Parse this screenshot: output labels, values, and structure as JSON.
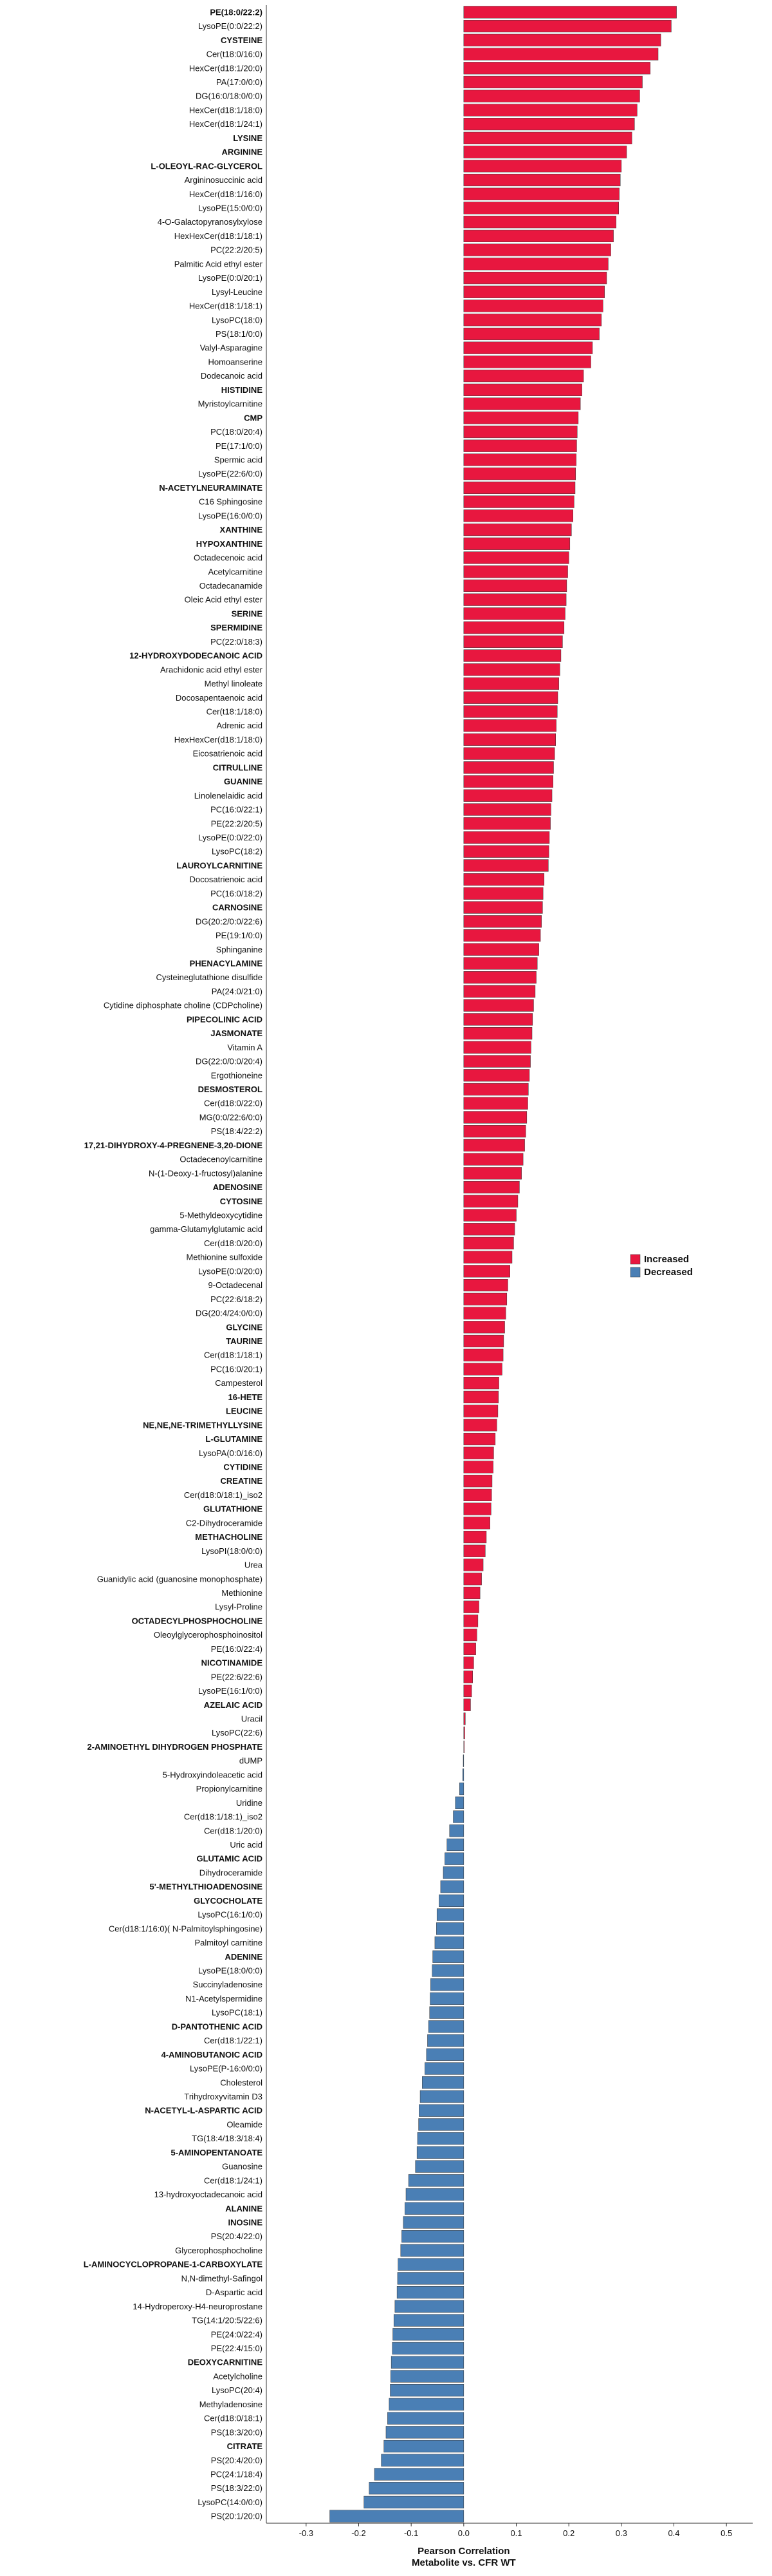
{
  "chart_data": {
    "type": "bar",
    "orientation": "horizontal",
    "xlabel": "Pearson Correlation\nMetabolite vs. CFR WT",
    "xlim": [
      -0.35,
      0.55
    ],
    "xticks": [
      -0.3,
      -0.2,
      -0.1,
      0.0,
      0.1,
      0.2,
      0.3,
      0.4,
      0.5
    ],
    "xtick_labels": [
      "-0.3",
      "-0.2",
      "-0.1",
      "0.0",
      "0.1",
      "0.2",
      "0.3",
      "0.4",
      "0.5"
    ],
    "grid": false,
    "legend": {
      "position": "right",
      "entries": [
        {
          "label": "Increased",
          "color": "#E8173F"
        },
        {
          "label": "Decreased",
          "color": "#4A7FB5"
        }
      ]
    },
    "colors": {
      "increased": "#E8173F",
      "decreased": "#4A7FB5",
      "bar_stroke": "#333333"
    },
    "bars": [
      {
        "label": "PE(18:0/22:2)",
        "value": 0.405,
        "bold": true
      },
      {
        "label": "LysoPE(0:0/22:2)",
        "value": 0.395,
        "bold": false
      },
      {
        "label": "CYSTEINE",
        "value": 0.375,
        "bold": true
      },
      {
        "label": "Cer(t18:0/16:0)",
        "value": 0.37,
        "bold": false
      },
      {
        "label": "HexCer(d18:1/20:0)",
        "value": 0.355,
        "bold": false
      },
      {
        "label": "PA(17:0/0:0)",
        "value": 0.34,
        "bold": false
      },
      {
        "label": "DG(16:0/18:0/0:0)",
        "value": 0.335,
        "bold": false
      },
      {
        "label": "HexCer(d18:1/18:0)",
        "value": 0.33,
        "bold": false
      },
      {
        "label": "HexCer(d18:1/24:1)",
        "value": 0.325,
        "bold": false
      },
      {
        "label": "LYSINE",
        "value": 0.32,
        "bold": true
      },
      {
        "label": "ARGININE",
        "value": 0.31,
        "bold": true
      },
      {
        "label": "L-OLEOYL-RAC-GLYCEROL",
        "value": 0.3,
        "bold": true
      },
      {
        "label": "Argininosuccinic acid",
        "value": 0.298,
        "bold": false
      },
      {
        "label": "HexCer(d18:1/16:0)",
        "value": 0.296,
        "bold": false
      },
      {
        "label": "LysoPE(15:0/0:0)",
        "value": 0.295,
        "bold": false
      },
      {
        "label": "4-O-Galactopyranosylxylose",
        "value": 0.29,
        "bold": false
      },
      {
        "label": "HexHexCer(d18:1/18:1)",
        "value": 0.285,
        "bold": false
      },
      {
        "label": "PC(22:2/20:5)",
        "value": 0.28,
        "bold": false
      },
      {
        "label": "Palmitic Acid ethyl ester",
        "value": 0.275,
        "bold": false
      },
      {
        "label": "LysoPE(0:0/20:1)",
        "value": 0.272,
        "bold": false
      },
      {
        "label": "Lysyl-Leucine",
        "value": 0.268,
        "bold": false
      },
      {
        "label": "HexCer(d18:1/18:1)",
        "value": 0.265,
        "bold": false
      },
      {
        "label": "LysoPC(18:0)",
        "value": 0.262,
        "bold": false
      },
      {
        "label": "PS(18:1/0:0)",
        "value": 0.258,
        "bold": false
      },
      {
        "label": "Valyl-Asparagine",
        "value": 0.245,
        "bold": false
      },
      {
        "label": "Homoanserine",
        "value": 0.242,
        "bold": false
      },
      {
        "label": "Dodecanoic acid",
        "value": 0.228,
        "bold": false
      },
      {
        "label": "HISTIDINE",
        "value": 0.225,
        "bold": true
      },
      {
        "label": "Myristoylcarnitine",
        "value": 0.222,
        "bold": false
      },
      {
        "label": "CMP",
        "value": 0.218,
        "bold": true
      },
      {
        "label": "PC(18:0/20:4)",
        "value": 0.216,
        "bold": false
      },
      {
        "label": "PE(17:1/0:0)",
        "value": 0.215,
        "bold": false
      },
      {
        "label": "Spermic acid",
        "value": 0.214,
        "bold": false
      },
      {
        "label": "LysoPE(22:6/0:0)",
        "value": 0.213,
        "bold": false
      },
      {
        "label": "N-ACETYLNEURAMINATE",
        "value": 0.212,
        "bold": true
      },
      {
        "label": "C16 Sphingosine",
        "value": 0.21,
        "bold": false
      },
      {
        "label": "LysoPE(16:0/0:0)",
        "value": 0.208,
        "bold": false
      },
      {
        "label": "XANTHINE",
        "value": 0.205,
        "bold": true
      },
      {
        "label": "HYPOXANTHINE",
        "value": 0.202,
        "bold": true
      },
      {
        "label": "Octadecenoic acid",
        "value": 0.2,
        "bold": false
      },
      {
        "label": "Acetylcarnitine",
        "value": 0.198,
        "bold": false
      },
      {
        "label": "Octadecanamide",
        "value": 0.196,
        "bold": false
      },
      {
        "label": "Oleic Acid ethyl ester",
        "value": 0.195,
        "bold": false
      },
      {
        "label": "SERINE",
        "value": 0.193,
        "bold": true
      },
      {
        "label": "SPERMIDINE",
        "value": 0.191,
        "bold": true
      },
      {
        "label": "PC(22:0/18:3)",
        "value": 0.188,
        "bold": false
      },
      {
        "label": "12-HYDROXYDODECANOIC ACID",
        "value": 0.185,
        "bold": true
      },
      {
        "label": "Arachidonic acid ethyl ester",
        "value": 0.183,
        "bold": false
      },
      {
        "label": "Methyl linoleate",
        "value": 0.181,
        "bold": false
      },
      {
        "label": "Docosapentaenoic acid",
        "value": 0.179,
        "bold": false
      },
      {
        "label": "Cer(t18:1/18:0)",
        "value": 0.178,
        "bold": false
      },
      {
        "label": "Adrenic acid",
        "value": 0.176,
        "bold": false
      },
      {
        "label": "HexHexCer(d18:1/18:0)",
        "value": 0.175,
        "bold": false
      },
      {
        "label": "Eicosatrienoic acid",
        "value": 0.173,
        "bold": false
      },
      {
        "label": "CITRULLINE",
        "value": 0.171,
        "bold": true
      },
      {
        "label": "GUANINE",
        "value": 0.17,
        "bold": true
      },
      {
        "label": "Linolenelaidic acid",
        "value": 0.168,
        "bold": false
      },
      {
        "label": "PC(16:0/22:1)",
        "value": 0.166,
        "bold": false
      },
      {
        "label": "PE(22:2/20:5)",
        "value": 0.165,
        "bold": false
      },
      {
        "label": "LysoPE(0:0/22:0)",
        "value": 0.163,
        "bold": false
      },
      {
        "label": "LysoPC(18:2)",
        "value": 0.162,
        "bold": false
      },
      {
        "label": "LAUROYLCARNITINE",
        "value": 0.161,
        "bold": true
      },
      {
        "label": "Docosatrienoic acid",
        "value": 0.153,
        "bold": false
      },
      {
        "label": "PC(16:0/18:2)",
        "value": 0.151,
        "bold": false
      },
      {
        "label": "CARNOSINE",
        "value": 0.15,
        "bold": true
      },
      {
        "label": "DG(20:2/0:0/22:6)",
        "value": 0.148,
        "bold": false
      },
      {
        "label": "PE(19:1/0:0)",
        "value": 0.146,
        "bold": false
      },
      {
        "label": "Sphinganine",
        "value": 0.143,
        "bold": false
      },
      {
        "label": "PHENACYLAMINE",
        "value": 0.14,
        "bold": true
      },
      {
        "label": "Cysteineglutathione disulfide",
        "value": 0.138,
        "bold": false
      },
      {
        "label": "PA(24:0/21:0)",
        "value": 0.136,
        "bold": false
      },
      {
        "label": "Cytidine diphosphate choline (CDPcholine)",
        "value": 0.133,
        "bold": false
      },
      {
        "label": "PIPECOLINIC ACID",
        "value": 0.131,
        "bold": true
      },
      {
        "label": "JASMONATE",
        "value": 0.13,
        "bold": true
      },
      {
        "label": "Vitamin A",
        "value": 0.128,
        "bold": false
      },
      {
        "label": "DG(22:0/0:0/20:4)",
        "value": 0.127,
        "bold": false
      },
      {
        "label": "Ergothioneine",
        "value": 0.125,
        "bold": false
      },
      {
        "label": "DESMOSTEROL",
        "value": 0.123,
        "bold": true
      },
      {
        "label": "Cer(d18:0/22:0)",
        "value": 0.122,
        "bold": false
      },
      {
        "label": "MG(0:0/22:6/0:0)",
        "value": 0.12,
        "bold": false
      },
      {
        "label": "PS(18:4/22:2)",
        "value": 0.118,
        "bold": false
      },
      {
        "label": "17,21-DIHYDROXY-4-PREGNENE-3,20-DIONE",
        "value": 0.116,
        "bold": true
      },
      {
        "label": "Octadecenoylcarnitine",
        "value": 0.113,
        "bold": false
      },
      {
        "label": "N-(1-Deoxy-1-fructosyl)alanine",
        "value": 0.11,
        "bold": false
      },
      {
        "label": "ADENOSINE",
        "value": 0.106,
        "bold": true
      },
      {
        "label": "CYTOSINE",
        "value": 0.103,
        "bold": true
      },
      {
        "label": "5-Methyldeoxycytidine",
        "value": 0.1,
        "bold": false
      },
      {
        "label": "gamma-Glutamylglutamic acid",
        "value": 0.097,
        "bold": false
      },
      {
        "label": "Cer(d18:0/20:0)",
        "value": 0.095,
        "bold": false
      },
      {
        "label": "Methionine sulfoxide",
        "value": 0.092,
        "bold": false
      },
      {
        "label": "LysoPE(0:0/20:0)",
        "value": 0.088,
        "bold": false
      },
      {
        "label": "9-Octadecenal",
        "value": 0.084,
        "bold": false
      },
      {
        "label": "PC(22:6/18:2)",
        "value": 0.082,
        "bold": false
      },
      {
        "label": "DG(20:4/24:0/0:0)",
        "value": 0.08,
        "bold": false
      },
      {
        "label": "GLYCINE",
        "value": 0.078,
        "bold": true
      },
      {
        "label": "TAURINE",
        "value": 0.076,
        "bold": true
      },
      {
        "label": "Cer(d18:1/18:1)",
        "value": 0.075,
        "bold": false
      },
      {
        "label": "PC(16:0/20:1)",
        "value": 0.073,
        "bold": false
      },
      {
        "label": "Campesterol",
        "value": 0.067,
        "bold": false
      },
      {
        "label": "16-HETE",
        "value": 0.066,
        "bold": true
      },
      {
        "label": "LEUCINE",
        "value": 0.065,
        "bold": true
      },
      {
        "label": "NE,NE,NE-TRIMETHYLLYSINE",
        "value": 0.063,
        "bold": true
      },
      {
        "label": "L-GLUTAMINE",
        "value": 0.06,
        "bold": true
      },
      {
        "label": "LysoPA(0:0/16:0)",
        "value": 0.057,
        "bold": false
      },
      {
        "label": "CYTIDINE",
        "value": 0.056,
        "bold": true
      },
      {
        "label": "CREATINE",
        "value": 0.054,
        "bold": true
      },
      {
        "label": "Cer(d18:0/18:1)_iso2",
        "value": 0.053,
        "bold": false
      },
      {
        "label": "GLUTATHIONE",
        "value": 0.052,
        "bold": true
      },
      {
        "label": "C2-Dihydroceramide",
        "value": 0.05,
        "bold": false
      },
      {
        "label": "METHACHOLINE",
        "value": 0.043,
        "bold": true
      },
      {
        "label": "LysoPI(18:0/0:0)",
        "value": 0.041,
        "bold": false
      },
      {
        "label": "Urea",
        "value": 0.037,
        "bold": false
      },
      {
        "label": "Guanidylic acid (guanosine monophosphate)",
        "value": 0.034,
        "bold": false
      },
      {
        "label": "Methionine",
        "value": 0.031,
        "bold": false
      },
      {
        "label": "Lysyl-Proline",
        "value": 0.029,
        "bold": false
      },
      {
        "label": "OCTADECYLPHOSPHOCHOLINE",
        "value": 0.027,
        "bold": true
      },
      {
        "label": "Oleoylglycerophosphoinositol",
        "value": 0.025,
        "bold": false
      },
      {
        "label": "PE(16:0/22:4)",
        "value": 0.023,
        "bold": false
      },
      {
        "label": "NICOTINAMIDE",
        "value": 0.019,
        "bold": true
      },
      {
        "label": "PE(22:6/22:6)",
        "value": 0.017,
        "bold": false
      },
      {
        "label": "LysoPE(16:1/0:0)",
        "value": 0.015,
        "bold": false
      },
      {
        "label": "AZELAIC ACID",
        "value": 0.013,
        "bold": true
      },
      {
        "label": "Uracil",
        "value": 0.003,
        "bold": false
      },
      {
        "label": "LysoPC(22:6)",
        "value": 0.002,
        "bold": false
      },
      {
        "label": "2-AMINOETHYL DIHYDROGEN PHOSPHATE",
        "value": 0.001,
        "bold": true
      },
      {
        "label": "dUMP",
        "value": -0.001,
        "bold": false
      },
      {
        "label": "5-Hydroxyindoleacetic acid",
        "value": -0.002,
        "bold": false
      },
      {
        "label": "Propionylcarnitine",
        "value": -0.008,
        "bold": false
      },
      {
        "label": "Uridine",
        "value": -0.016,
        "bold": false
      },
      {
        "label": "Cer(d18:1/18:1)_iso2",
        "value": -0.02,
        "bold": false
      },
      {
        "label": "Cer(d18:1/20:0)",
        "value": -0.027,
        "bold": false
      },
      {
        "label": "Uric acid",
        "value": -0.032,
        "bold": false
      },
      {
        "label": "GLUTAMIC ACID",
        "value": -0.036,
        "bold": true
      },
      {
        "label": "Dihydroceramide",
        "value": -0.039,
        "bold": false
      },
      {
        "label": "5'-METHYLTHIOADENOSINE",
        "value": -0.044,
        "bold": true
      },
      {
        "label": "GLYCOCHOLATE",
        "value": -0.047,
        "bold": true
      },
      {
        "label": "LysoPC(16:1/0:0)",
        "value": -0.051,
        "bold": false
      },
      {
        "label": "Cer(d18:1/16:0)( N-Palmitoylsphingosine)",
        "value": -0.052,
        "bold": false
      },
      {
        "label": "Palmitoyl carnitine",
        "value": -0.055,
        "bold": false
      },
      {
        "label": "ADENINE",
        "value": -0.059,
        "bold": true
      },
      {
        "label": "LysoPE(18:0/0:0)",
        "value": -0.06,
        "bold": false
      },
      {
        "label": "Succinyladenosine",
        "value": -0.063,
        "bold": false
      },
      {
        "label": "N1-Acetylspermidine",
        "value": -0.064,
        "bold": false
      },
      {
        "label": "LysoPC(18:1)",
        "value": -0.065,
        "bold": false
      },
      {
        "label": "D-PANTOTHENIC ACID",
        "value": -0.067,
        "bold": true
      },
      {
        "label": "Cer(d18:1/22:1)",
        "value": -0.069,
        "bold": false
      },
      {
        "label": "4-AMINOBUTANOIC ACID",
        "value": -0.071,
        "bold": true
      },
      {
        "label": "LysoPE(P-16:0/0:0)",
        "value": -0.074,
        "bold": false
      },
      {
        "label": "Cholesterol",
        "value": -0.079,
        "bold": false
      },
      {
        "label": "Trihydroxyvitamin D3",
        "value": -0.083,
        "bold": false
      },
      {
        "label": "N-ACETYL-L-ASPARTIC ACID",
        "value": -0.085,
        "bold": true
      },
      {
        "label": "Oleamide",
        "value": -0.086,
        "bold": false
      },
      {
        "label": "TG(18:4/18:3/18:4)",
        "value": -0.088,
        "bold": false
      },
      {
        "label": "5-AMINOPENTANOATE",
        "value": -0.089,
        "bold": true
      },
      {
        "label": "Guanosine",
        "value": -0.092,
        "bold": false
      },
      {
        "label": "Cer(d18:1/24:1)",
        "value": -0.105,
        "bold": false
      },
      {
        "label": "13-hydroxyoctadecanoic acid",
        "value": -0.11,
        "bold": false
      },
      {
        "label": "ALANINE",
        "value": -0.112,
        "bold": true
      },
      {
        "label": "INOSINE",
        "value": -0.115,
        "bold": true
      },
      {
        "label": "PS(20:4/22:0)",
        "value": -0.118,
        "bold": false
      },
      {
        "label": "Glycerophosphocholine",
        "value": -0.12,
        "bold": false
      },
      {
        "label": "L-AMINOCYCLOPROPANE-1-CARBOXYLATE",
        "value": -0.125,
        "bold": true
      },
      {
        "label": "N,N-dimethyl-Safingol",
        "value": -0.126,
        "bold": false
      },
      {
        "label": "D-Aspartic acid",
        "value": -0.127,
        "bold": false
      },
      {
        "label": "14-Hydroperoxy-H4-neuroprostane",
        "value": -0.131,
        "bold": false
      },
      {
        "label": "TG(14:1/20:5/22:6)",
        "value": -0.133,
        "bold": false
      },
      {
        "label": "PE(24:0/22:4)",
        "value": -0.135,
        "bold": false
      },
      {
        "label": "PE(22:4/15:0)",
        "value": -0.136,
        "bold": false
      },
      {
        "label": "DEOXYCARNITINE",
        "value": -0.138,
        "bold": true
      },
      {
        "label": "Acetylcholine",
        "value": -0.139,
        "bold": false
      },
      {
        "label": "LysoPC(20:4)",
        "value": -0.14,
        "bold": false
      },
      {
        "label": "Methyladenosine",
        "value": -0.142,
        "bold": false
      },
      {
        "label": "Cer(d18:0/18:1)",
        "value": -0.145,
        "bold": false
      },
      {
        "label": "PS(18:3/20:0)",
        "value": -0.148,
        "bold": false
      },
      {
        "label": "CITRATE",
        "value": -0.152,
        "bold": true
      },
      {
        "label": "PS(20:4/20:0)",
        "value": -0.157,
        "bold": false
      },
      {
        "label": "PC(24:1/18:4)",
        "value": -0.17,
        "bold": false
      },
      {
        "label": "PS(18:3/22:0)",
        "value": -0.18,
        "bold": false
      },
      {
        "label": "LysoPC(14:0/0:0)",
        "value": -0.19,
        "bold": false
      },
      {
        "label": "PS(20:1/20:0)",
        "value": -0.255,
        "bold": false
      }
    ]
  }
}
